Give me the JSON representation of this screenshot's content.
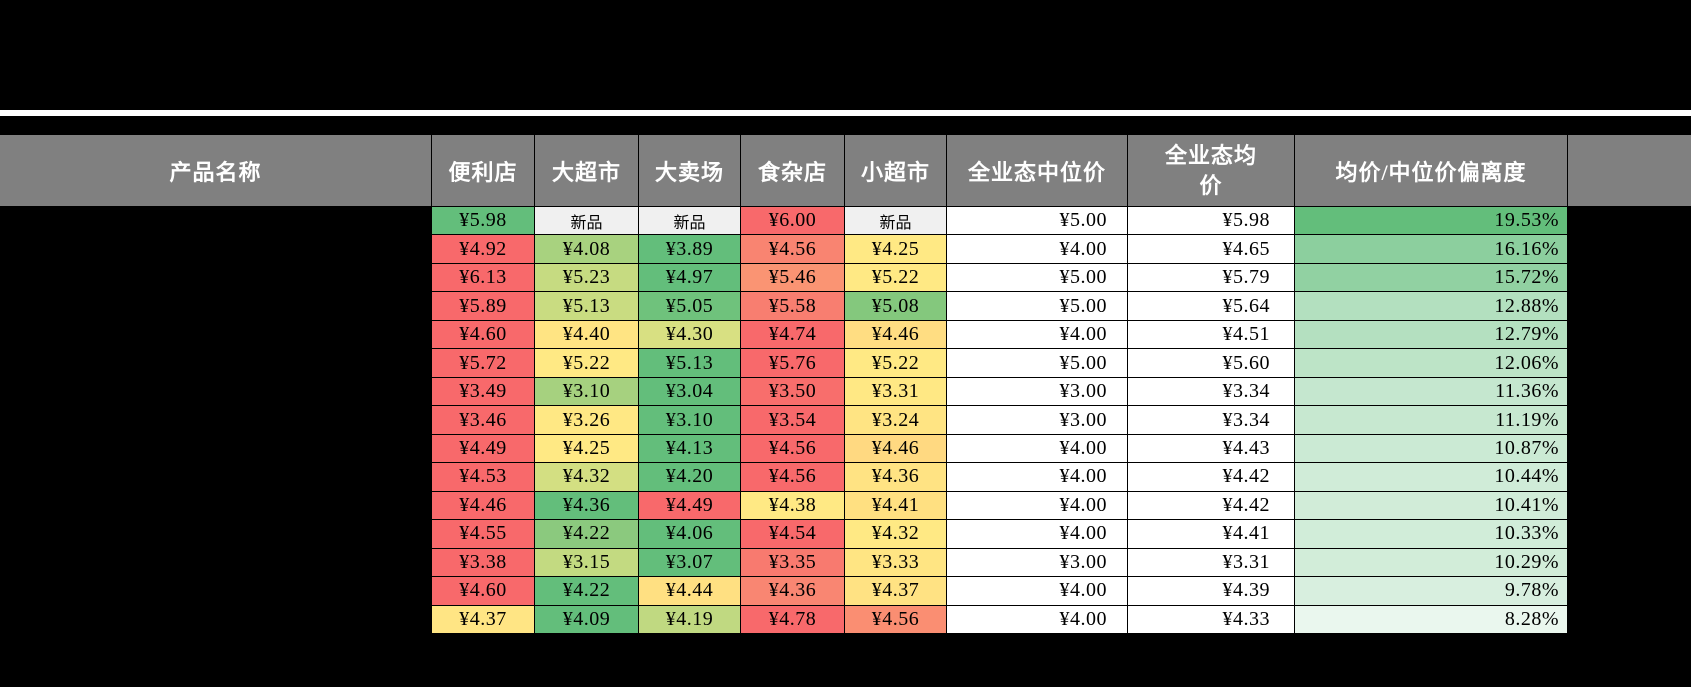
{
  "colors": {
    "window_background": "#000000",
    "separator": "#ffffff",
    "header_background": "#808080",
    "header_text": "#ffffff",
    "grid_line": "#000000",
    "scale_high_red": "#f8696b",
    "scale_mid_yellow": "#ffe984",
    "scale_low_green": "#63be7b",
    "new_item_background": "#f0f0f0",
    "plain_cell_background": "#ffffff"
  },
  "table": {
    "header": {
      "labels": [
        "产品名称",
        "便利店",
        "大超市",
        "大卖场",
        "食杂店",
        "小超市",
        "全业态中位价",
        "全业态均价",
        "均价/中位价偏离度"
      ]
    },
    "new_item_label": "新品",
    "rows": [
      {
        "store_prices": [
          {
            "text": "¥5.98",
            "bg": "#63be7b"
          },
          {
            "text": "新品",
            "bg": "#f0f0f0",
            "is_new": true
          },
          {
            "text": "新品",
            "bg": "#f0f0f0",
            "is_new": true
          },
          {
            "text": "¥6.00",
            "bg": "#f8696b"
          },
          {
            "text": "新品",
            "bg": "#f0f0f0",
            "is_new": true
          }
        ],
        "median": "¥5.00",
        "average": "¥5.98",
        "deviation": "19.53%",
        "deviation_bg": "#63be7b"
      },
      {
        "store_prices": [
          {
            "text": "¥4.92",
            "bg": "#f8696b"
          },
          {
            "text": "¥4.08",
            "bg": "#a8d27f"
          },
          {
            "text": "¥3.89",
            "bg": "#63be7b"
          },
          {
            "text": "¥4.56",
            "bg": "#f98471"
          },
          {
            "text": "¥4.25",
            "bg": "#ffe984"
          }
        ],
        "median": "¥4.00",
        "average": "¥4.65",
        "deviation": "16.16%",
        "deviation_bg": "#8ccf9e"
      },
      {
        "store_prices": [
          {
            "text": "¥6.13",
            "bg": "#f8696b"
          },
          {
            "text": "¥5.23",
            "bg": "#c6db81"
          },
          {
            "text": "¥4.97",
            "bg": "#63be7b"
          },
          {
            "text": "¥5.46",
            "bg": "#fa9473"
          },
          {
            "text": "¥5.22",
            "bg": "#ffe984"
          }
        ],
        "median": "¥5.00",
        "average": "¥5.79",
        "deviation": "15.72%",
        "deviation_bg": "#91d1a2"
      },
      {
        "store_prices": [
          {
            "text": "¥5.89",
            "bg": "#f8696b"
          },
          {
            "text": "¥5.13",
            "bg": "#c9dc81"
          },
          {
            "text": "¥5.05",
            "bg": "#6fc27c"
          },
          {
            "text": "¥5.58",
            "bg": "#f87e70"
          },
          {
            "text": "¥5.08",
            "bg": "#84c87d"
          }
        ],
        "median": "¥5.00",
        "average": "¥5.64",
        "deviation": "12.88%",
        "deviation_bg": "#b3e0bf"
      },
      {
        "store_prices": [
          {
            "text": "¥4.60",
            "bg": "#f8696b"
          },
          {
            "text": "¥4.40",
            "bg": "#ffe483"
          },
          {
            "text": "¥4.30",
            "bg": "#d8e082"
          },
          {
            "text": "¥4.74",
            "bg": "#f8696b"
          },
          {
            "text": "¥4.46",
            "bg": "#ffdd82"
          }
        ],
        "median": "¥4.00",
        "average": "¥4.51",
        "deviation": "12.79%",
        "deviation_bg": "#b4e0c0"
      },
      {
        "store_prices": [
          {
            "text": "¥5.72",
            "bg": "#f8696b"
          },
          {
            "text": "¥5.22",
            "bg": "#ffe984"
          },
          {
            "text": "¥5.13",
            "bg": "#63be7b"
          },
          {
            "text": "¥5.76",
            "bg": "#f8696b"
          },
          {
            "text": "¥5.22",
            "bg": "#ffe984"
          }
        ],
        "median": "¥5.00",
        "average": "¥5.60",
        "deviation": "12.06%",
        "deviation_bg": "#bde4c7"
      },
      {
        "store_prices": [
          {
            "text": "¥3.49",
            "bg": "#f8696b"
          },
          {
            "text": "¥3.10",
            "bg": "#a6d17f"
          },
          {
            "text": "¥3.04",
            "bg": "#63be7b"
          },
          {
            "text": "¥3.50",
            "bg": "#f86e6c"
          },
          {
            "text": "¥3.31",
            "bg": "#ffe884"
          }
        ],
        "median": "¥3.00",
        "average": "¥3.34",
        "deviation": "11.36%",
        "deviation_bg": "#c5e7cf"
      },
      {
        "store_prices": [
          {
            "text": "¥3.46",
            "bg": "#f8696b"
          },
          {
            "text": "¥3.26",
            "bg": "#ffe884"
          },
          {
            "text": "¥3.10",
            "bg": "#63be7b"
          },
          {
            "text": "¥3.54",
            "bg": "#f8696b"
          },
          {
            "text": "¥3.24",
            "bg": "#ffe483"
          }
        ],
        "median": "¥3.00",
        "average": "¥3.34",
        "deviation": "11.19%",
        "deviation_bg": "#c7e8d0"
      },
      {
        "store_prices": [
          {
            "text": "¥4.49",
            "bg": "#f8696b"
          },
          {
            "text": "¥4.25",
            "bg": "#ffe984"
          },
          {
            "text": "¥4.13",
            "bg": "#63be7b"
          },
          {
            "text": "¥4.56",
            "bg": "#f8696b"
          },
          {
            "text": "¥4.46",
            "bg": "#ffd981"
          }
        ],
        "median": "¥4.00",
        "average": "¥4.43",
        "deviation": "10.87%",
        "deviation_bg": "#cbead4"
      },
      {
        "store_prices": [
          {
            "text": "¥4.53",
            "bg": "#f8696b"
          },
          {
            "text": "¥4.32",
            "bg": "#d3df82"
          },
          {
            "text": "¥4.20",
            "bg": "#63be7b"
          },
          {
            "text": "¥4.56",
            "bg": "#f8696b"
          },
          {
            "text": "¥4.36",
            "bg": "#ffe383"
          }
        ],
        "median": "¥4.00",
        "average": "¥4.42",
        "deviation": "10.44%",
        "deviation_bg": "#d0ecd8"
      },
      {
        "store_prices": [
          {
            "text": "¥4.46",
            "bg": "#f8696b"
          },
          {
            "text": "¥4.36",
            "bg": "#63be7b"
          },
          {
            "text": "¥4.49",
            "bg": "#f8696b"
          },
          {
            "text": "¥4.38",
            "bg": "#ffe984"
          },
          {
            "text": "¥4.41",
            "bg": "#ffe081"
          }
        ],
        "median": "¥4.00",
        "average": "¥4.42",
        "deviation": "10.41%",
        "deviation_bg": "#d1ecd8"
      },
      {
        "store_prices": [
          {
            "text": "¥4.55",
            "bg": "#f8696b"
          },
          {
            "text": "¥4.22",
            "bg": "#8bc97e"
          },
          {
            "text": "¥4.06",
            "bg": "#63be7b"
          },
          {
            "text": "¥4.54",
            "bg": "#f8696b"
          },
          {
            "text": "¥4.32",
            "bg": "#ffe984"
          }
        ],
        "median": "¥4.00",
        "average": "¥4.41",
        "deviation": "10.33%",
        "deviation_bg": "#d1edd9"
      },
      {
        "store_prices": [
          {
            "text": "¥3.38",
            "bg": "#f8696b"
          },
          {
            "text": "¥3.15",
            "bg": "#c3da81"
          },
          {
            "text": "¥3.07",
            "bg": "#63be7b"
          },
          {
            "text": "¥3.35",
            "bg": "#f87a6f"
          },
          {
            "text": "¥3.33",
            "bg": "#ffe583"
          }
        ],
        "median": "¥3.00",
        "average": "¥3.31",
        "deviation": "10.29%",
        "deviation_bg": "#d2edd9"
      },
      {
        "store_prices": [
          {
            "text": "¥4.60",
            "bg": "#f8696b"
          },
          {
            "text": "¥4.22",
            "bg": "#63be7b"
          },
          {
            "text": "¥4.44",
            "bg": "#ffe082"
          },
          {
            "text": "¥4.36",
            "bg": "#f98672"
          },
          {
            "text": "¥4.37",
            "bg": "#ffe283"
          }
        ],
        "median": "¥4.00",
        "average": "¥4.39",
        "deviation": "9.78%",
        "deviation_bg": "#d8efdf"
      },
      {
        "store_prices": [
          {
            "text": "¥4.37",
            "bg": "#ffe584"
          },
          {
            "text": "¥4.09",
            "bg": "#63be7b"
          },
          {
            "text": "¥4.19",
            "bg": "#c0d981"
          },
          {
            "text": "¥4.78",
            "bg": "#f8696b"
          },
          {
            "text": "¥4.56",
            "bg": "#fa8e72"
          }
        ],
        "median": "¥4.00",
        "average": "¥4.33",
        "deviation": "8.28%",
        "deviation_bg": "#eaf7ee"
      }
    ]
  }
}
